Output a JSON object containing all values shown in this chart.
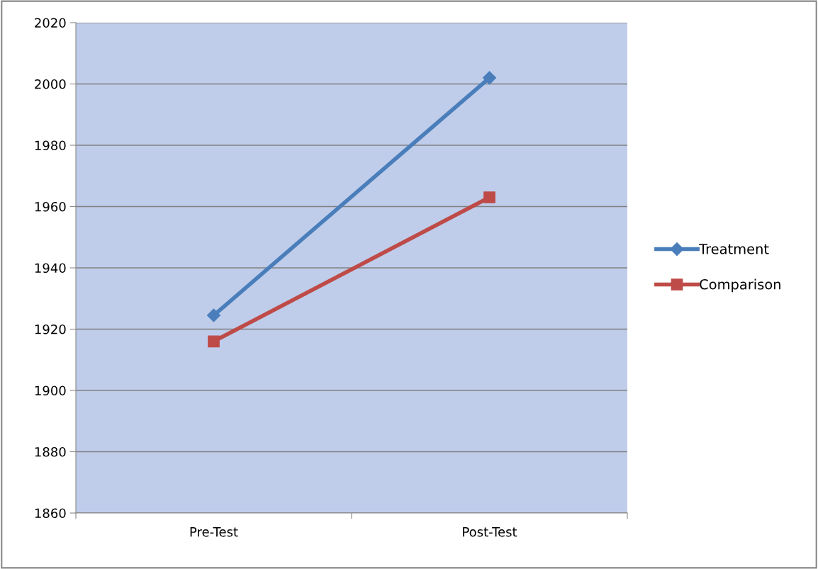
{
  "chart_data": {
    "type": "line",
    "categories": [
      "Pre-Test",
      "Post-Test"
    ],
    "series": [
      {
        "name": "Treatment",
        "color": "#4a7ebb",
        "marker": "diamond",
        "values": [
          1924.5,
          2002
        ]
      },
      {
        "name": "Comparison",
        "color": "#be4b48",
        "marker": "square",
        "values": [
          1916,
          1963
        ]
      }
    ],
    "ylim": [
      1860,
      2020
    ],
    "yticks": [
      1860,
      1880,
      1900,
      1920,
      1940,
      1960,
      1980,
      2000,
      2020
    ],
    "grid": "y",
    "legend": "right",
    "line_style": "solid"
  }
}
